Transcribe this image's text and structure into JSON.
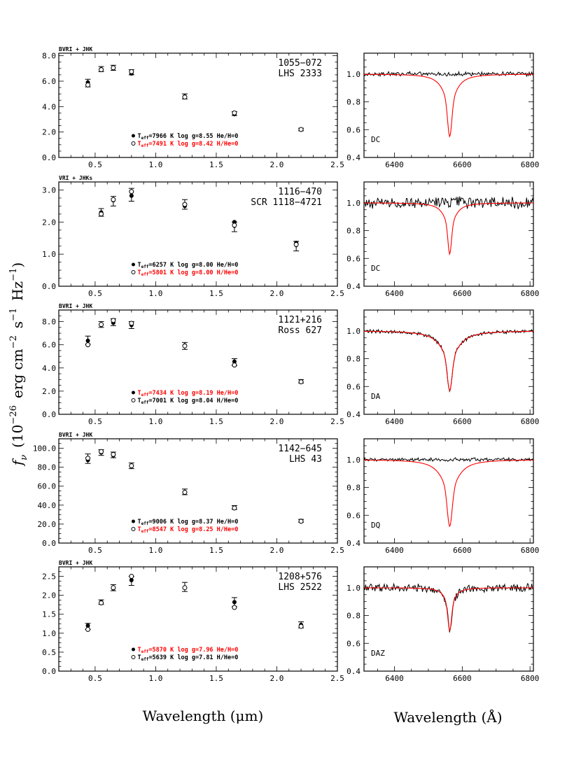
{
  "axis_titles": {
    "y": "f_ν (10^-26 erg cm^-2 s^-1 Hz^-1)",
    "y_symbol": "f",
    "y_sub": "ν",
    "y_main": "(10",
    "y_exp1": "−26",
    "y_unit1": "erg cm",
    "y_exp2": "−2",
    "y_unit2": "s",
    "y_exp3": "−1",
    "y_unit3": "Hz",
    "y_exp4": "−1",
    "y_close": ")",
    "x_left": "Wavelength (μm)",
    "x_right": "Wavelength (Å)"
  },
  "colors": {
    "obs": "#000000",
    "model": "#ff0000"
  },
  "chart_data": [
    {
      "type": "scatter",
      "panel": "SED",
      "photometry": "BVRI + JHK",
      "id": "1055−072",
      "name": "LHS 2333",
      "xlabel": "Wavelength (μm)",
      "xlim": [
        0.2,
        2.5
      ],
      "ylim": [
        0.0,
        8.2
      ],
      "yticks": [
        "0.0",
        "2.0",
        "4.0",
        "6.0",
        "8.0"
      ],
      "xticks": [
        "0.5",
        "1.0",
        "1.5",
        "2.0",
        "2.5"
      ],
      "observed": [
        {
          "x": 0.44,
          "y": 5.85,
          "err": 0.3
        },
        {
          "x": 0.55,
          "y": 6.95,
          "err": 0.2
        },
        {
          "x": 0.65,
          "y": 7.05,
          "err": 0.2
        },
        {
          "x": 0.8,
          "y": 6.7,
          "err": 0.2
        },
        {
          "x": 1.24,
          "y": 4.8,
          "err": 0.2
        },
        {
          "x": 1.65,
          "y": 3.45,
          "err": 0.15
        },
        {
          "x": 2.2,
          "y": 2.2,
          "err": 0.1
        }
      ],
      "models": [
        {
          "symbol": "filled",
          "color": "#000000",
          "label": "T_eff=7966 K  log g=8.55  He/H=0",
          "teff_text": "T",
          "sub": "eff",
          "rest": "=7966 K  log g=8.55  He/H=0",
          "points": [
            {
              "x": 0.44,
              "y": 5.9
            },
            {
              "x": 0.55,
              "y": 6.95
            },
            {
              "x": 0.65,
              "y": 7.0
            },
            {
              "x": 0.8,
              "y": 6.6
            },
            {
              "x": 1.24,
              "y": 4.8
            },
            {
              "x": 1.65,
              "y": 3.4
            },
            {
              "x": 2.2,
              "y": 2.2
            }
          ]
        },
        {
          "symbol": "open",
          "color": "#ff0000",
          "label": "T_eff=7491 K  log g=8.42  H/He=0",
          "teff_text": "T",
          "sub": "eff",
          "rest": "=7491 K  log g=8.42  H/He=0",
          "points": [
            {
              "x": 0.44,
              "y": 5.7
            },
            {
              "x": 0.55,
              "y": 6.9
            },
            {
              "x": 0.65,
              "y": 7.05
            },
            {
              "x": 0.8,
              "y": 6.75
            },
            {
              "x": 1.24,
              "y": 4.75
            },
            {
              "x": 1.65,
              "y": 3.5
            },
            {
              "x": 2.2,
              "y": 2.2
            }
          ]
        }
      ]
    },
    {
      "type": "line",
      "panel": "spectrum",
      "label": "DC",
      "xlabel": "Wavelength (Å)",
      "xlim": [
        6310,
        6810
      ],
      "ylim": [
        0.4,
        1.15
      ],
      "xticks": [
        "6400",
        "6600",
        "6800"
      ],
      "yticks": [
        "0.4",
        "0.6",
        "0.8",
        "1.0"
      ],
      "line_center": 6563,
      "model_depth": 0.45,
      "model_width": 6,
      "model_wing": 24,
      "obs_follows_model": 0,
      "noise": 0.012
    },
    {
      "type": "scatter",
      "panel": "SED",
      "photometry": "VRI + JHKs",
      "id": "1116−470",
      "name": "SCR 1118−4721",
      "xlabel": "Wavelength (μm)",
      "xlim": [
        0.2,
        2.5
      ],
      "ylim": [
        0.0,
        3.25
      ],
      "yticks": [
        "0.0",
        "1.0",
        "2.0",
        "3.0"
      ],
      "xticks": [
        "0.5",
        "1.0",
        "1.5",
        "2.0",
        "2.5"
      ],
      "observed": [
        {
          "x": 0.55,
          "y": 2.3,
          "err": 0.12
        },
        {
          "x": 0.65,
          "y": 2.65,
          "err": 0.15
        },
        {
          "x": 0.8,
          "y": 2.85,
          "err": 0.2
        },
        {
          "x": 1.24,
          "y": 2.55,
          "err": 0.15
        },
        {
          "x": 1.65,
          "y": 1.85,
          "err": 0.15
        },
        {
          "x": 2.16,
          "y": 1.25,
          "err": 0.15
        }
      ],
      "models": [
        {
          "symbol": "filled",
          "color": "#000000",
          "label": "T_eff=6257 K  log g=8.00  He/H=0",
          "teff_text": "T",
          "sub": "eff",
          "rest": "=6257 K  log g=8.00  He/H=0",
          "points": [
            {
              "x": 0.55,
              "y": 2.3
            },
            {
              "x": 0.65,
              "y": 2.68
            },
            {
              "x": 0.8,
              "y": 2.82
            },
            {
              "x": 1.24,
              "y": 2.5
            },
            {
              "x": 1.65,
              "y": 2.0
            },
            {
              "x": 2.16,
              "y": 1.35
            }
          ]
        },
        {
          "symbol": "open",
          "color": "#ff0000",
          "label": "T_eff=5801 K  log g=8.00  H/He=0",
          "teff_text": "T",
          "sub": "eff",
          "rest": "=5801 K  log g=8.00  H/He=0",
          "points": [
            {
              "x": 0.55,
              "y": 2.25
            },
            {
              "x": 0.65,
              "y": 2.7
            },
            {
              "x": 0.8,
              "y": 2.95
            },
            {
              "x": 1.24,
              "y": 2.55
            },
            {
              "x": 1.65,
              "y": 1.9
            },
            {
              "x": 2.16,
              "y": 1.3
            }
          ]
        }
      ]
    },
    {
      "type": "line",
      "panel": "spectrum",
      "label": "DC",
      "xlabel": "Wavelength (Å)",
      "xlim": [
        6310,
        6810
      ],
      "ylim": [
        0.4,
        1.15
      ],
      "xticks": [
        "6400",
        "6600",
        "6800"
      ],
      "yticks": [
        "0.4",
        "0.6",
        "0.8",
        "1.0"
      ],
      "line_center": 6563,
      "model_depth": 0.37,
      "model_width": 5,
      "model_wing": 20,
      "obs_follows_model": 0,
      "noise": 0.035
    },
    {
      "type": "scatter",
      "panel": "SED",
      "photometry": "BVRI + JHK",
      "id": "1121+216",
      "name": "Ross 627",
      "xlabel": "Wavelength (μm)",
      "xlim": [
        0.2,
        2.5
      ],
      "ylim": [
        0.0,
        9.0
      ],
      "yticks": [
        "0.0",
        "2.0",
        "4.0",
        "6.0",
        "8.0"
      ],
      "xticks": [
        "0.5",
        "1.0",
        "1.5",
        "2.0",
        "2.5"
      ],
      "observed": [
        {
          "x": 0.44,
          "y": 6.4,
          "err": 0.35
        },
        {
          "x": 0.55,
          "y": 7.75,
          "err": 0.25
        },
        {
          "x": 0.65,
          "y": 7.95,
          "err": 0.3
        },
        {
          "x": 0.8,
          "y": 7.7,
          "err": 0.3
        },
        {
          "x": 1.24,
          "y": 5.9,
          "err": 0.3
        },
        {
          "x": 1.65,
          "y": 4.5,
          "err": 0.3
        },
        {
          "x": 2.2,
          "y": 2.85,
          "err": 0.15
        }
      ],
      "models": [
        {
          "symbol": "filled",
          "color": "#ff0000",
          "label": "T_eff=7434 K  log g=8.19  He/H=0",
          "teff_text": "T",
          "sub": "eff",
          "rest": "=7434 K  log g=8.19  He/H=0",
          "points": [
            {
              "x": 0.44,
              "y": 6.35
            },
            {
              "x": 0.55,
              "y": 7.7
            },
            {
              "x": 0.65,
              "y": 7.9
            },
            {
              "x": 0.8,
              "y": 7.7
            },
            {
              "x": 1.24,
              "y": 5.95
            },
            {
              "x": 1.65,
              "y": 4.55
            },
            {
              "x": 2.2,
              "y": 2.85
            }
          ]
        },
        {
          "symbol": "open",
          "color": "#000000",
          "label": "T_eff=7001 K  log g=8.04  H/He=0",
          "teff_text": "T",
          "sub": "eff",
          "rest": "=7001 K  log g=8.04  H/He=0",
          "points": [
            {
              "x": 0.44,
              "y": 6.0
            },
            {
              "x": 0.55,
              "y": 7.75
            },
            {
              "x": 0.65,
              "y": 8.1
            },
            {
              "x": 0.8,
              "y": 7.85
            },
            {
              "x": 1.24,
              "y": 5.9
            },
            {
              "x": 1.65,
              "y": 4.25
            },
            {
              "x": 2.2,
              "y": 2.8
            }
          ]
        }
      ]
    },
    {
      "type": "line",
      "panel": "spectrum",
      "label": "DA",
      "xlabel": "Wavelength (Å)",
      "xlim": [
        6310,
        6810
      ],
      "ylim": [
        0.4,
        1.15
      ],
      "xticks": [
        "6400",
        "6600",
        "6800"
      ],
      "yticks": [
        "0.4",
        "0.6",
        "0.8",
        "1.0"
      ],
      "line_center": 6563,
      "model_depth": 0.43,
      "model_width": 7,
      "model_wing": 32,
      "obs_follows_model": 1,
      "noise": 0.01
    },
    {
      "type": "scatter",
      "panel": "SED",
      "photometry": "BVRI + JHK",
      "id": "1142−645",
      "name": "LHS 43",
      "xlabel": "Wavelength (μm)",
      "xlim": [
        0.2,
        2.5
      ],
      "ylim": [
        0.0,
        110.0
      ],
      "yticks": [
        "0.0",
        "20.0",
        "40.0",
        "60.0",
        "80.0",
        "100.0"
      ],
      "xticks": [
        "0.5",
        "1.0",
        "1.5",
        "2.0",
        "2.5"
      ],
      "observed": [
        {
          "x": 0.44,
          "y": 89.0,
          "err": 5.0
        },
        {
          "x": 0.55,
          "y": 95.5,
          "err": 3.0
        },
        {
          "x": 0.65,
          "y": 93.0,
          "err": 3.0
        },
        {
          "x": 0.8,
          "y": 81.5,
          "err": 3.0
        },
        {
          "x": 1.24,
          "y": 54.0,
          "err": 3.0
        },
        {
          "x": 1.65,
          "y": 37.5,
          "err": 2.0
        },
        {
          "x": 2.2,
          "y": 23.5,
          "err": 1.5
        }
      ],
      "models": [
        {
          "symbol": "filled",
          "color": "#000000",
          "label": "T_eff=9006 K  log g=8.37  He/H=0",
          "teff_text": "T",
          "sub": "eff",
          "rest": "=9006 K  log g=8.37  He/H=0",
          "points": [
            {
              "x": 0.44,
              "y": 87.5
            },
            {
              "x": 0.55,
              "y": 95.5
            },
            {
              "x": 0.65,
              "y": 92.5
            },
            {
              "x": 0.8,
              "y": 81.0
            },
            {
              "x": 1.24,
              "y": 54.0
            },
            {
              "x": 1.65,
              "y": 37.5
            },
            {
              "x": 2.2,
              "y": 23.5
            }
          ]
        },
        {
          "symbol": "open",
          "color": "#ff0000",
          "label": "T_eff=8547 K  log g=8.25  H/He=0",
          "teff_text": "T",
          "sub": "eff",
          "rest": "=8547 K  log g=8.25  H/He=0",
          "points": [
            {
              "x": 0.44,
              "y": 89.5
            },
            {
              "x": 0.55,
              "y": 96.5
            },
            {
              "x": 0.65,
              "y": 93.5
            },
            {
              "x": 0.8,
              "y": 81.5
            },
            {
              "x": 1.24,
              "y": 53.5
            },
            {
              "x": 1.65,
              "y": 37.0
            },
            {
              "x": 2.2,
              "y": 23.0
            }
          ]
        }
      ]
    },
    {
      "type": "line",
      "panel": "spectrum",
      "label": "DQ",
      "xlabel": "Wavelength (Å)",
      "xlim": [
        6310,
        6810
      ],
      "ylim": [
        0.4,
        1.15
      ],
      "xticks": [
        "6400",
        "6600",
        "6800"
      ],
      "yticks": [
        "0.4",
        "0.6",
        "0.8",
        "1.0"
      ],
      "line_center": 6563,
      "model_depth": 0.48,
      "model_width": 7,
      "model_wing": 30,
      "obs_follows_model": 0,
      "noise": 0.01
    },
    {
      "type": "scatter",
      "panel": "SED",
      "photometry": "BVRI + JHK",
      "id": "1208+576",
      "name": "LHS 2522",
      "xlabel": "Wavelength (μm)",
      "xlim": [
        0.2,
        2.5
      ],
      "ylim": [
        0.0,
        2.75
      ],
      "yticks": [
        "0.0",
        "0.5",
        "1.0",
        "1.5",
        "2.0",
        "2.5"
      ],
      "xticks": [
        "0.5",
        "1.0",
        "1.5",
        "2.0",
        "2.5"
      ],
      "observed": [
        {
          "x": 0.44,
          "y": 1.18,
          "err": 0.08
        },
        {
          "x": 0.55,
          "y": 1.82,
          "err": 0.06
        },
        {
          "x": 0.65,
          "y": 2.2,
          "err": 0.08
        },
        {
          "x": 0.8,
          "y": 2.38,
          "err": 0.12
        },
        {
          "x": 1.24,
          "y": 2.22,
          "err": 0.12
        },
        {
          "x": 1.65,
          "y": 1.82,
          "err": 0.12
        },
        {
          "x": 2.2,
          "y": 1.22,
          "err": 0.08
        }
      ],
      "models": [
        {
          "symbol": "filled",
          "color": "#ff0000",
          "label": "T_eff=5870 K  log g=7.96  He/H=0",
          "teff_text": "T",
          "sub": "eff",
          "rest": "=5870 K  log g=7.96  He/H=0",
          "points": [
            {
              "x": 0.44,
              "y": 1.2
            },
            {
              "x": 0.55,
              "y": 1.82
            },
            {
              "x": 0.65,
              "y": 2.18
            },
            {
              "x": 0.8,
              "y": 2.4
            },
            {
              "x": 1.24,
              "y": 2.2
            },
            {
              "x": 1.65,
              "y": 1.82
            },
            {
              "x": 2.2,
              "y": 1.22
            }
          ]
        },
        {
          "symbol": "open",
          "color": "#000000",
          "label": "T_eff=5639 K  log g=7.81  H/He=0",
          "teff_text": "T",
          "sub": "eff",
          "rest": "=5639 K  log g=7.81  H/He=0",
          "points": [
            {
              "x": 0.44,
              "y": 1.1
            },
            {
              "x": 0.55,
              "y": 1.8
            },
            {
              "x": 0.65,
              "y": 2.2
            },
            {
              "x": 0.8,
              "y": 2.5
            },
            {
              "x": 1.24,
              "y": 2.2
            },
            {
              "x": 1.65,
              "y": 1.68
            },
            {
              "x": 2.2,
              "y": 1.18
            }
          ]
        }
      ]
    },
    {
      "type": "line",
      "panel": "spectrum",
      "label": "DAZ",
      "xlabel": "Wavelength (Å)",
      "xlim": [
        6310,
        6810
      ],
      "ylim": [
        0.4,
        1.15
      ],
      "xticks": [
        "6400",
        "6600",
        "6800"
      ],
      "yticks": [
        "0.4",
        "0.6",
        "0.8",
        "1.0"
      ],
      "line_center": 6563,
      "model_depth": 0.31,
      "model_width": 5,
      "model_wing": 16,
      "obs_follows_model": 1,
      "noise": 0.022
    }
  ]
}
